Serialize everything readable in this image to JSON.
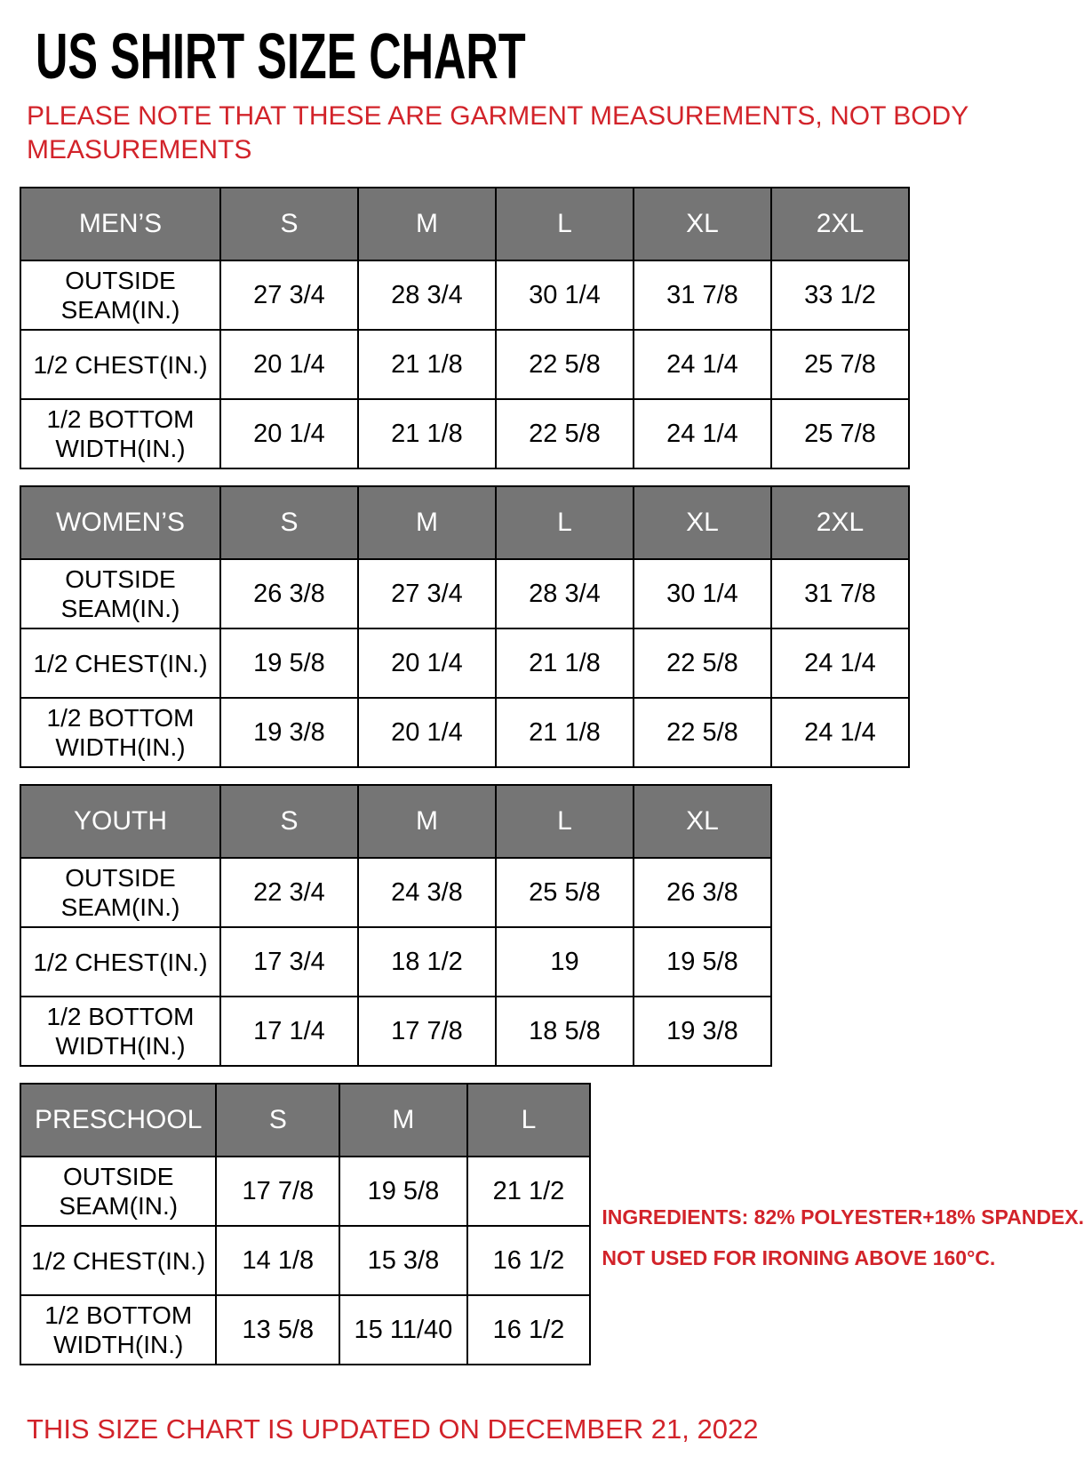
{
  "title": "US SHIRT SIZE CHART",
  "note": "PLEASE NOTE THAT THESE ARE GARMENT MEASUREMENTS, NOT BODY MEASUREMENTS",
  "ingredients": {
    "line1": "INGREDIENTS: 82% POLYESTER+18% SPANDEX.",
    "line2": "NOT USED FOR IRONING ABOVE 160°C."
  },
  "footer": "THIS SIZE CHART IS UPDATED ON DECEMBER 21, 2022",
  "colors": {
    "header_bg": "#757575",
    "header_text": "#ffffff",
    "accent_red": "#d2232a",
    "border": "#000000"
  },
  "tables": [
    {
      "group": "MEN’S",
      "sizes": [
        "S",
        "M",
        "L",
        "XL",
        "2XL"
      ],
      "rows": [
        {
          "label": "OUTSIDE SEAM(IN.)",
          "values": [
            "27 3/4",
            "28 3/4",
            "30 1/4",
            "31 7/8",
            "33 1/2"
          ]
        },
        {
          "label": "1/2 CHEST(IN.)",
          "values": [
            "20 1/4",
            "21 1/8",
            "22 5/8",
            "24 1/4",
            "25 7/8"
          ]
        },
        {
          "label": "1/2 BOTTOM WIDTH(IN.)",
          "values": [
            "20 1/4",
            "21 1/8",
            "22 5/8",
            "24 1/4",
            "25 7/8"
          ]
        }
      ]
    },
    {
      "group": "WOMEN’S",
      "sizes": [
        "S",
        "M",
        "L",
        "XL",
        "2XL"
      ],
      "rows": [
        {
          "label": "OUTSIDE SEAM(IN.)",
          "values": [
            "26 3/8",
            "27 3/4",
            "28 3/4",
            "30 1/4",
            "31 7/8"
          ]
        },
        {
          "label": "1/2 CHEST(IN.)",
          "values": [
            "19 5/8",
            "20 1/4",
            "21 1/8",
            "22 5/8",
            "24 1/4"
          ]
        },
        {
          "label": "1/2 BOTTOM WIDTH(IN.)",
          "values": [
            "19 3/8",
            "20 1/4",
            "21 1/8",
            "22 5/8",
            "24 1/4"
          ]
        }
      ]
    },
    {
      "group": "YOUTH",
      "sizes": [
        "S",
        "M",
        "L",
        "XL"
      ],
      "rows": [
        {
          "label": "OUTSIDE SEAM(IN.)",
          "values": [
            "22 3/4",
            "24 3/8",
            "25 5/8",
            "26 3/8"
          ]
        },
        {
          "label": "1/2 CHEST(IN.)",
          "values": [
            "17 3/4",
            "18 1/2",
            "19",
            "19 5/8"
          ]
        },
        {
          "label": "1/2 BOTTOM WIDTH(IN.)",
          "values": [
            "17 1/4",
            "17 7/8",
            "18 5/8",
            "19 3/8"
          ]
        }
      ]
    },
    {
      "group": "PRESCHOOL",
      "sizes": [
        "S",
        "M",
        "L"
      ],
      "rows": [
        {
          "label": "OUTSIDE SEAM(IN.)",
          "values": [
            "17 7/8",
            "19 5/8",
            "21 1/2"
          ]
        },
        {
          "label": "1/2 CHEST(IN.)",
          "values": [
            "14 1/8",
            "15 3/8",
            "16 1/2"
          ]
        },
        {
          "label": "1/2 BOTTOM WIDTH(IN.)",
          "values": [
            "13 5/8",
            "15 11/40",
            "16 1/2"
          ]
        }
      ]
    }
  ]
}
